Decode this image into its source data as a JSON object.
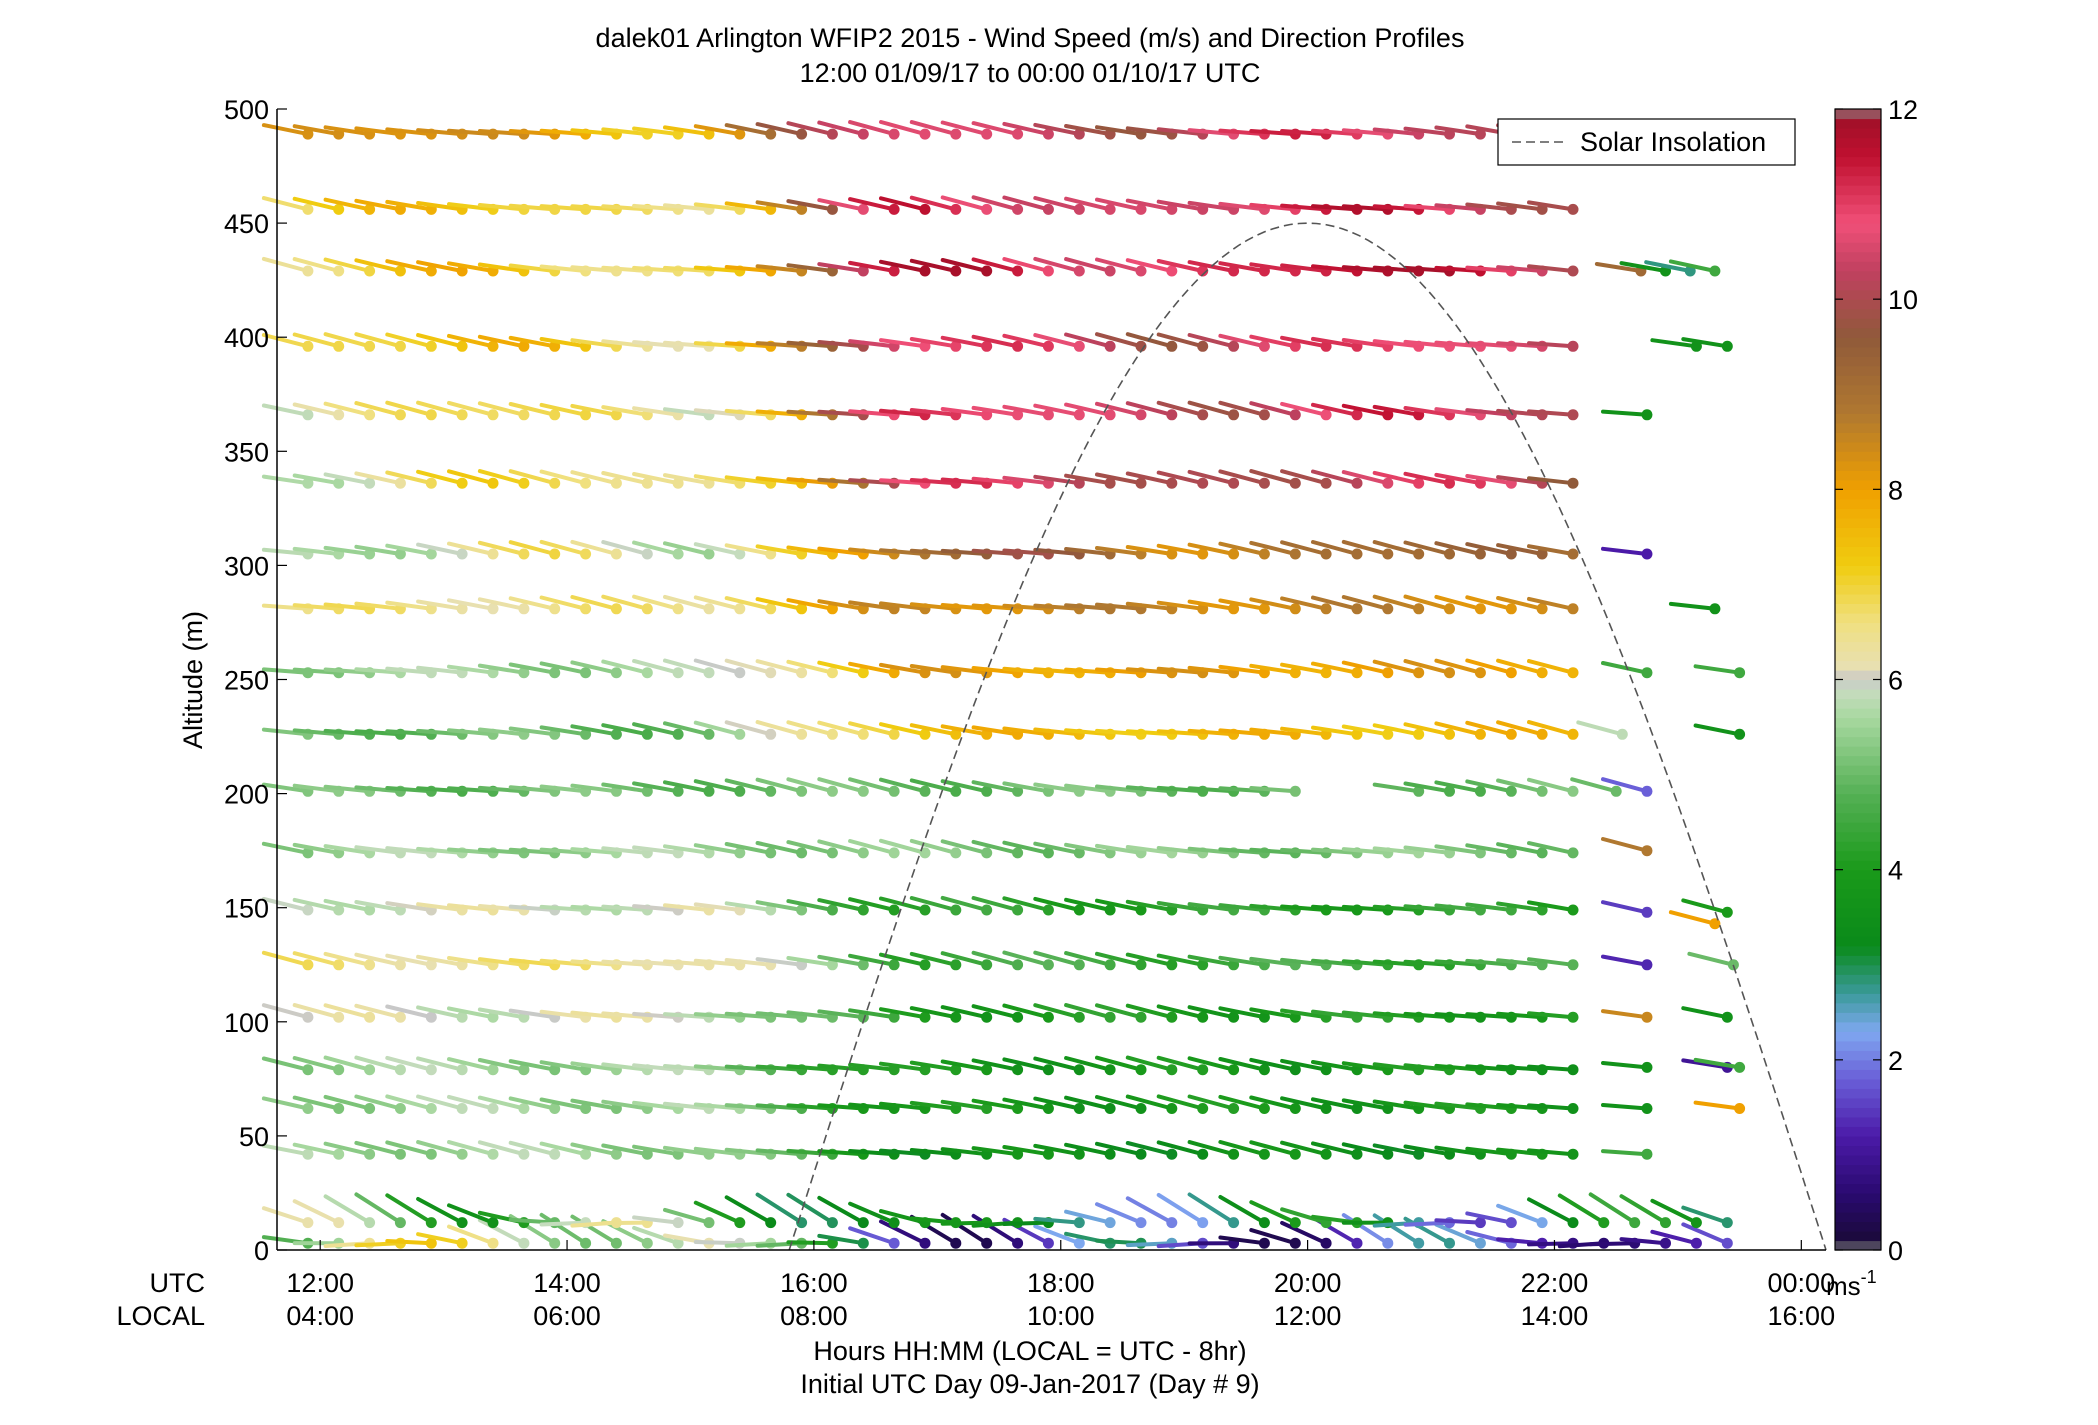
{
  "chart_data": {
    "type": "wind_barb_profile",
    "title": "dalek01 Arlington WFIP2 2015 - Wind Speed (m/s) and Direction Profiles",
    "subtitle": "12:00 01/09/17 to 00:00 01/10/17  UTC",
    "ylabel": "Altitude (m)",
    "xlabel_line1": "Hours HH:MM  (LOCAL = UTC - 8hr)",
    "xlabel_line2": "Initial UTC Day 09-Jan-2017 (Day # 9)",
    "utc_row_label": "UTC",
    "local_row_label": "LOCAL",
    "x_range_hours": [
      11.65,
      24.2
    ],
    "ylim": [
      0,
      500
    ],
    "y_ticks": [
      "0",
      "50",
      "100",
      "150",
      "200",
      "250",
      "300",
      "350",
      "400",
      "450",
      "500"
    ],
    "utc_ticks": [
      {
        "hour": 12,
        "label": "12:00"
      },
      {
        "hour": 14,
        "label": "14:00"
      },
      {
        "hour": 16,
        "label": "16:00"
      },
      {
        "hour": 18,
        "label": "18:00"
      },
      {
        "hour": 20,
        "label": "20:00"
      },
      {
        "hour": 22,
        "label": "22:00"
      },
      {
        "hour": 24,
        "label": "00:00"
      }
    ],
    "local_ticks": [
      {
        "hour": 12,
        "label": "04:00"
      },
      {
        "hour": 14,
        "label": "06:00"
      },
      {
        "hour": 16,
        "label": "08:00"
      },
      {
        "hour": 18,
        "label": "10:00"
      },
      {
        "hour": 20,
        "label": "12:00"
      },
      {
        "hour": 22,
        "label": "14:00"
      },
      {
        "hour": 24,
        "label": "16:00"
      }
    ],
    "legend": {
      "position": "top-right",
      "entry": "Solar Insolation"
    },
    "solar_insolation": {
      "start_hour": 15.8,
      "peak_hour": 20.0,
      "end_hour": 24.2,
      "peak_altitude": 450
    },
    "colorbar": {
      "min": 0,
      "max": 12,
      "ticks": [
        "0",
        "2",
        "4",
        "6",
        "8",
        "10",
        "12"
      ],
      "unit_base": "ms",
      "unit_exp": "-1"
    },
    "barbs": {
      "altitudes": [
        3,
        12,
        42,
        62,
        79,
        102,
        125,
        149,
        174,
        201,
        226,
        253,
        281,
        305,
        336,
        366,
        396,
        429,
        456,
        489
      ],
      "time_start": 11.9,
      "time_step": 0.25,
      "upper_end_hour": 22.2,
      "near_surface_end_hour": 23.6,
      "speed_profile": [
        {
          "alt": 3,
          "night": 6.0,
          "day": 1.5
        },
        {
          "alt": 12,
          "night": 5.0,
          "day": 3.0
        },
        {
          "alt": 42,
          "night": 5.5,
          "day": 3.5
        },
        {
          "alt": 62,
          "night": 5.5,
          "day": 3.8
        },
        {
          "alt": 79,
          "night": 5.5,
          "day": 3.8
        },
        {
          "alt": 102,
          "night": 6.0,
          "day": 4.0
        },
        {
          "alt": 125,
          "night": 6.5,
          "day": 4.5
        },
        {
          "alt": 149,
          "night": 6.0,
          "day": 4.2
        },
        {
          "alt": 174,
          "night": 5.5,
          "day": 5.2
        },
        {
          "alt": 201,
          "night": 5.0,
          "day": 5.0
        },
        {
          "alt": 226,
          "night": 5.0,
          "day": 7.5
        },
        {
          "alt": 253,
          "night": 5.5,
          "day": 8.0
        },
        {
          "alt": 281,
          "night": 6.5,
          "day": 8.5
        },
        {
          "alt": 305,
          "night": 6.0,
          "day": 9.0
        },
        {
          "alt": 336,
          "night": 6.5,
          "day": 10.3
        },
        {
          "alt": 366,
          "night": 6.5,
          "day": 10.6
        },
        {
          "alt": 396,
          "night": 7.0,
          "day": 10.6
        },
        {
          "alt": 429,
          "night": 7.0,
          "day": 11.2
        },
        {
          "alt": 456,
          "night": 7.0,
          "day": 10.8
        },
        {
          "alt": 489,
          "night": 8.0,
          "day": 10.5
        }
      ],
      "late_barbs": [
        {
          "hour": 22.75,
          "alt": 175,
          "speed": 8.8
        },
        {
          "hour": 22.75,
          "alt": 148,
          "speed": 1.5
        },
        {
          "hour": 22.75,
          "alt": 125,
          "speed": 1.3
        },
        {
          "hour": 22.75,
          "alt": 102,
          "speed": 8.5
        },
        {
          "hour": 22.75,
          "alt": 80,
          "speed": 3.6
        },
        {
          "hour": 22.75,
          "alt": 62,
          "speed": 3.6
        },
        {
          "hour": 22.75,
          "alt": 42,
          "speed": 4.5
        },
        {
          "hour": 22.75,
          "alt": 305,
          "speed": 1.2
        },
        {
          "hour": 22.75,
          "alt": 366,
          "speed": 3.6
        },
        {
          "hour": 22.75,
          "alt": 253,
          "speed": 4.5
        },
        {
          "hour": 22.7,
          "alt": 429,
          "speed": 9.2
        },
        {
          "hour": 22.9,
          "alt": 429,
          "speed": 3.6
        },
        {
          "hour": 23.1,
          "alt": 429,
          "speed": 2.8
        },
        {
          "hour": 23.3,
          "alt": 429,
          "speed": 4.5
        },
        {
          "hour": 23.15,
          "alt": 396,
          "speed": 3.6
        },
        {
          "hour": 23.4,
          "alt": 396,
          "speed": 3.6
        },
        {
          "hour": 23.3,
          "alt": 281,
          "speed": 3.6
        },
        {
          "hour": 23.5,
          "alt": 253,
          "speed": 4.5
        },
        {
          "hour": 23.5,
          "alt": 226,
          "speed": 3.6
        },
        {
          "hour": 22.55,
          "alt": 226,
          "speed": 5.8
        },
        {
          "hour": 22.5,
          "alt": 201,
          "speed": 5.0
        },
        {
          "hour": 22.75,
          "alt": 201,
          "speed": 1.8
        },
        {
          "hour": 23.4,
          "alt": 148,
          "speed": 4.0
        },
        {
          "hour": 23.3,
          "alt": 143,
          "speed": 8.0
        },
        {
          "hour": 23.45,
          "alt": 125,
          "speed": 5.0
        },
        {
          "hour": 23.4,
          "alt": 102,
          "speed": 3.6
        },
        {
          "hour": 23.4,
          "alt": 80,
          "speed": 1.0
        },
        {
          "hour": 23.5,
          "alt": 80,
          "speed": 4.5
        },
        {
          "hour": 23.5,
          "alt": 62,
          "speed": 8.0
        }
      ]
    }
  }
}
